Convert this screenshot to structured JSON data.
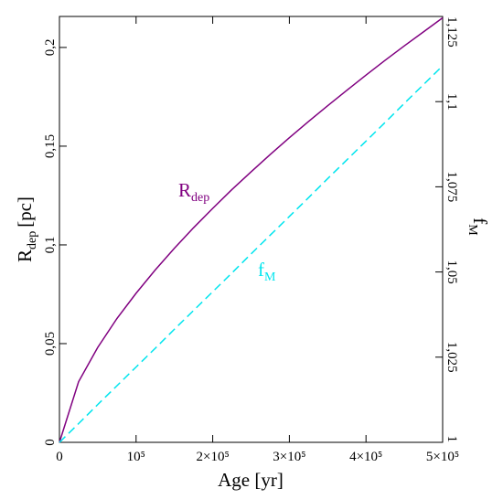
{
  "chart_data": {
    "type": "line",
    "x_label": "Age [yr]",
    "y_label": {
      "main": "R",
      "sub": "dep",
      "unit": "[pc]"
    },
    "y2_label": {
      "main": "f",
      "sub": "M"
    },
    "annotations": [
      {
        "main": "R",
        "sub": "dep"
      },
      {
        "main": "f",
        "sub": "M"
      }
    ],
    "x": [
      0,
      25000,
      50000,
      75000,
      100000,
      125000,
      150000,
      175000,
      200000,
      225000,
      250000,
      275000,
      300000,
      325000,
      350000,
      375000,
      400000,
      425000,
      450000,
      475000,
      500000
    ],
    "series": [
      {
        "name": "R_dep",
        "color": "#800080",
        "dash": "solid",
        "values": [
          0,
          0.0307,
          0.0481,
          0.0627,
          0.0755,
          0.0873,
          0.0983,
          0.1087,
          0.1185,
          0.128,
          0.137,
          0.1458,
          0.1543,
          0.1625,
          0.1705,
          0.1783,
          0.186,
          0.1935,
          0.2008,
          0.2079,
          0.215
        ]
      },
      {
        "name": "f_M",
        "color": "#00e5ee",
        "dash": "dashed",
        "axis": "y2",
        "values": [
          1,
          1.0055,
          1.0111,
          1.0166,
          1.0221,
          1.0276,
          1.0332,
          1.0387,
          1.0442,
          1.0497,
          1.0553,
          1.0608,
          1.0663,
          1.0718,
          1.0774,
          1.0829,
          1.0884,
          1.0939,
          1.0995,
          1.105,
          1.1105
        ]
      }
    ],
    "xlim": [
      0,
      500000
    ],
    "xticks": [
      0,
      {
        "value": 100000,
        "label": "10⁵"
      },
      {
        "value": 200000,
        "label": "2×10⁵"
      },
      {
        "value": 300000,
        "label": "3×10⁵"
      },
      {
        "value": 400000,
        "label": "4×10⁵"
      },
      {
        "value": 500000,
        "label": "5×10⁵"
      }
    ],
    "ylim": [
      0,
      0.2157
    ],
    "yticks": [
      0,
      {
        "value": 0.05,
        "label": "0,05"
      },
      {
        "value": 0.1,
        "label": "0,1"
      },
      {
        "value": 0.15,
        "label": "0,15"
      },
      {
        "value": 0.2,
        "label": "0,2"
      }
    ],
    "y2lim": [
      1,
      1.125
    ],
    "y2ticks": [
      1,
      {
        "value": 1.025,
        "label": "1,025"
      },
      {
        "value": 1.05,
        "label": "1,05"
      },
      {
        "value": 1.075,
        "label": "1,075"
      },
      {
        "value": 1.1,
        "label": "1,1"
      },
      {
        "value": 1.125,
        "label": "1,125"
      }
    ]
  }
}
